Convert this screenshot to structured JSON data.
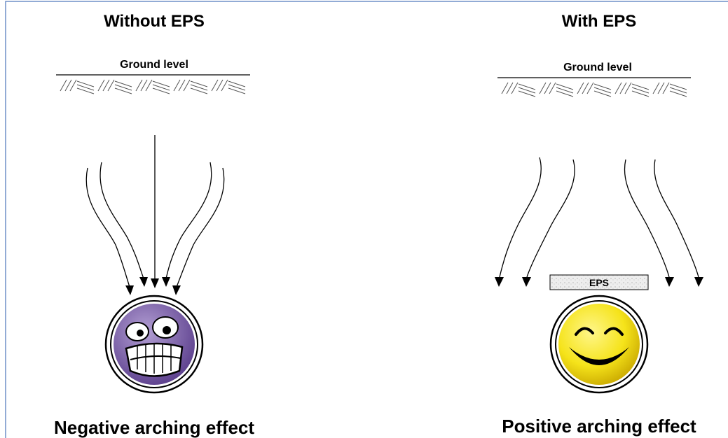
{
  "left": {
    "title": "Without EPS",
    "ground_label": "Ground level",
    "caption": "Negative arching effect"
  },
  "right": {
    "title": "With EPS",
    "ground_label": "Ground level",
    "eps_label": "EPS",
    "caption": "Positive arching effect"
  }
}
